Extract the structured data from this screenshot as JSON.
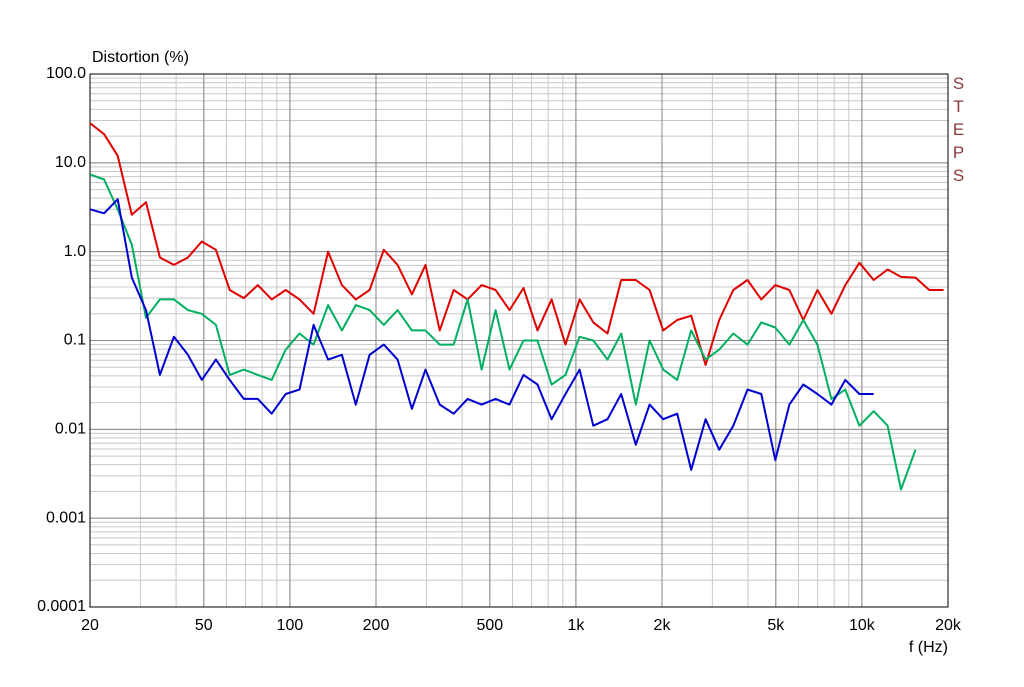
{
  "chart_data": {
    "type": "line",
    "y_label": "Distortion (%)",
    "x_label": "f (Hz)",
    "annotation": "STEPS",
    "log_x": true,
    "log_y": true,
    "grid": true,
    "minor_grid": true,
    "xlim": [
      20,
      20000
    ],
    "ylim": [
      0.0001,
      100
    ],
    "xticks": [
      20,
      50,
      100,
      200,
      500,
      {
        "value": 1000,
        "label": "1k"
      },
      {
        "value": 2000,
        "label": "2k"
      },
      {
        "value": 5000,
        "label": "5k"
      },
      {
        "value": 10000,
        "label": "10k"
      },
      {
        "value": 20000,
        "label": "20k"
      }
    ],
    "yticks": [
      {
        "value": 100,
        "label": "100.0"
      },
      {
        "value": 10,
        "label": "10.0"
      },
      {
        "value": 1,
        "label": "1.0"
      },
      0.1,
      0.01,
      0.001,
      0.0001
    ],
    "x": [
      20,
      22.4,
      25,
      28,
      31.4,
      35.1,
      39.3,
      44,
      49.2,
      55.1,
      61.6,
      69,
      77.2,
      86.4,
      96.7,
      108,
      121,
      136,
      152,
      170,
      190,
      213,
      238,
      267,
      298,
      334,
      374,
      418,
      468,
      524,
      586,
      656,
      734,
      822,
      920,
      1030,
      1150,
      1290,
      1440,
      1620,
      1810,
      2020,
      2260,
      2530,
      2840,
      3170,
      3550,
      3980,
      4450,
      4980,
      5580,
      6240,
      6990,
      7820,
      8750,
      9800,
      11000,
      12300,
      13700,
      15400,
      17200,
      19300
    ],
    "series": [
      {
        "color": "#e00000",
        "values": [
          28,
          21,
          12,
          2.6,
          3.6,
          0.86,
          0.71,
          0.86,
          1.3,
          1.05,
          0.37,
          0.3,
          0.42,
          0.29,
          0.37,
          0.29,
          0.2,
          1.0,
          0.42,
          0.29,
          0.37,
          1.05,
          0.71,
          0.33,
          0.71,
          0.13,
          0.37,
          0.29,
          0.42,
          0.37,
          0.22,
          0.39,
          0.13,
          0.29,
          0.09,
          0.29,
          0.16,
          0.12,
          0.48,
          0.48,
          0.37,
          0.13,
          0.17,
          0.19,
          0.053,
          0.17,
          0.37,
          0.48,
          0.29,
          0.42,
          0.37,
          0.17,
          0.37,
          0.2,
          0.42,
          0.75,
          0.48,
          0.63,
          0.52,
          0.51,
          0.37,
          0.37
        ]
      },
      {
        "color": "#00b060",
        "values": [
          7.4,
          6.5,
          3.0,
          1.2,
          0.18,
          0.29,
          0.29,
          0.22,
          0.2,
          0.15,
          0.041,
          0.047,
          0.041,
          0.036,
          0.079,
          0.12,
          0.09,
          0.25,
          0.13,
          0.25,
          0.22,
          0.15,
          0.22,
          0.13,
          0.13,
          0.09,
          0.09,
          0.29,
          0.047,
          0.22,
          0.047,
          0.1,
          0.1,
          0.032,
          0.041,
          0.11,
          0.1,
          0.061,
          0.12,
          0.019,
          0.1,
          0.047,
          0.036,
          0.13,
          0.061,
          0.079,
          0.12,
          0.09,
          0.16,
          0.14,
          0.09,
          0.17,
          0.09,
          0.022,
          0.028,
          0.011,
          0.016,
          0.011,
          0.0021,
          0.0059,
          null,
          null
        ]
      },
      {
        "color": "#0000d0",
        "values": [
          3.0,
          2.7,
          3.9,
          0.51,
          0.22,
          0.041,
          0.11,
          0.069,
          0.036,
          0.061,
          0.036,
          0.022,
          0.022,
          0.015,
          0.025,
          0.028,
          0.15,
          0.061,
          0.069,
          0.019,
          0.069,
          0.09,
          0.061,
          0.017,
          0.047,
          0.019,
          0.015,
          0.022,
          0.019,
          0.022,
          0.019,
          0.041,
          0.032,
          0.013,
          0.025,
          0.047,
          0.011,
          0.013,
          0.025,
          0.0067,
          0.019,
          0.013,
          0.015,
          0.0035,
          0.013,
          0.0059,
          0.011,
          0.028,
          0.025,
          0.0045,
          0.019,
          0.032,
          0.025,
          0.019,
          0.036,
          0.025,
          0.025,
          null,
          null,
          null,
          null,
          null
        ]
      }
    ]
  }
}
